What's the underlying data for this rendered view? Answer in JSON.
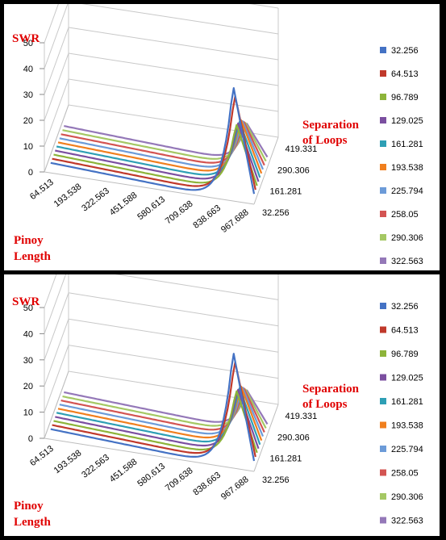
{
  "chart_data": [
    {
      "type": "line-3d",
      "title": "",
      "zlabel": "SWR",
      "xlabel_line1": "Pinoy",
      "xlabel_line2": "Length",
      "ylabel_line1": "Separation",
      "ylabel_line2": "of Loops",
      "zticks": [
        "0",
        "10",
        "20",
        "30",
        "40",
        "50"
      ],
      "zlim": [
        0,
        50
      ],
      "x_ticks": [
        "64.513",
        "193.538",
        "322.563",
        "451.588",
        "580.613",
        "709.638",
        "838.663",
        "967.688"
      ],
      "depth_ticks": [
        "419.331",
        "290.306",
        "161.281",
        "32.256"
      ],
      "series": [
        {
          "name": "32.256",
          "color": "#4472c4",
          "peak": 45
        },
        {
          "name": "64.513",
          "color": "#c0392b",
          "peak": 40
        },
        {
          "name": "96.789",
          "color": "#8db43a",
          "peak": 27
        },
        {
          "name": "129.025",
          "color": "#7b4fa0",
          "peak": 26
        },
        {
          "name": "161.281",
          "color": "#2e9fb5",
          "peak": 25
        },
        {
          "name": "193.538",
          "color": "#f07f1e",
          "peak": 24
        },
        {
          "name": "225.794",
          "color": "#6c9bd8",
          "peak": 22
        },
        {
          "name": "258.05",
          "color": "#d35452",
          "peak": 20
        },
        {
          "name": "290.306",
          "color": "#a5c864",
          "peak": 18
        },
        {
          "name": "322.563",
          "color": "#9478b8",
          "peak": 16
        }
      ]
    },
    {
      "type": "line-3d",
      "title": "",
      "zlabel": "SWR",
      "xlabel_line1": "Pinoy",
      "xlabel_line2": "Length",
      "ylabel_line1": "Separation",
      "ylabel_line2": "of Loops",
      "zticks": [
        "0",
        "10",
        "20",
        "30",
        "40",
        "50"
      ],
      "zlim": [
        0,
        50
      ],
      "x_ticks": [
        "64.513",
        "193.538",
        "322.563",
        "451.588",
        "580.613",
        "709.638",
        "838.663",
        "967.688"
      ],
      "depth_ticks": [
        "419.331",
        "290.306",
        "161.281",
        "32.256"
      ],
      "series": [
        {
          "name": "32.256",
          "color": "#4472c4",
          "peak": 45
        },
        {
          "name": "64.513",
          "color": "#c0392b",
          "peak": 40
        },
        {
          "name": "96.789",
          "color": "#8db43a",
          "peak": 27
        },
        {
          "name": "129.025",
          "color": "#7b4fa0",
          "peak": 26
        },
        {
          "name": "161.281",
          "color": "#2e9fb5",
          "peak": 25
        },
        {
          "name": "193.538",
          "color": "#f07f1e",
          "peak": 24
        },
        {
          "name": "225.794",
          "color": "#6c9bd8",
          "peak": 22
        },
        {
          "name": "258.05",
          "color": "#d35452",
          "peak": 20
        },
        {
          "name": "290.306",
          "color": "#a5c864",
          "peak": 18
        },
        {
          "name": "322.563",
          "color": "#9478b8",
          "peak": 16
        }
      ]
    }
  ]
}
